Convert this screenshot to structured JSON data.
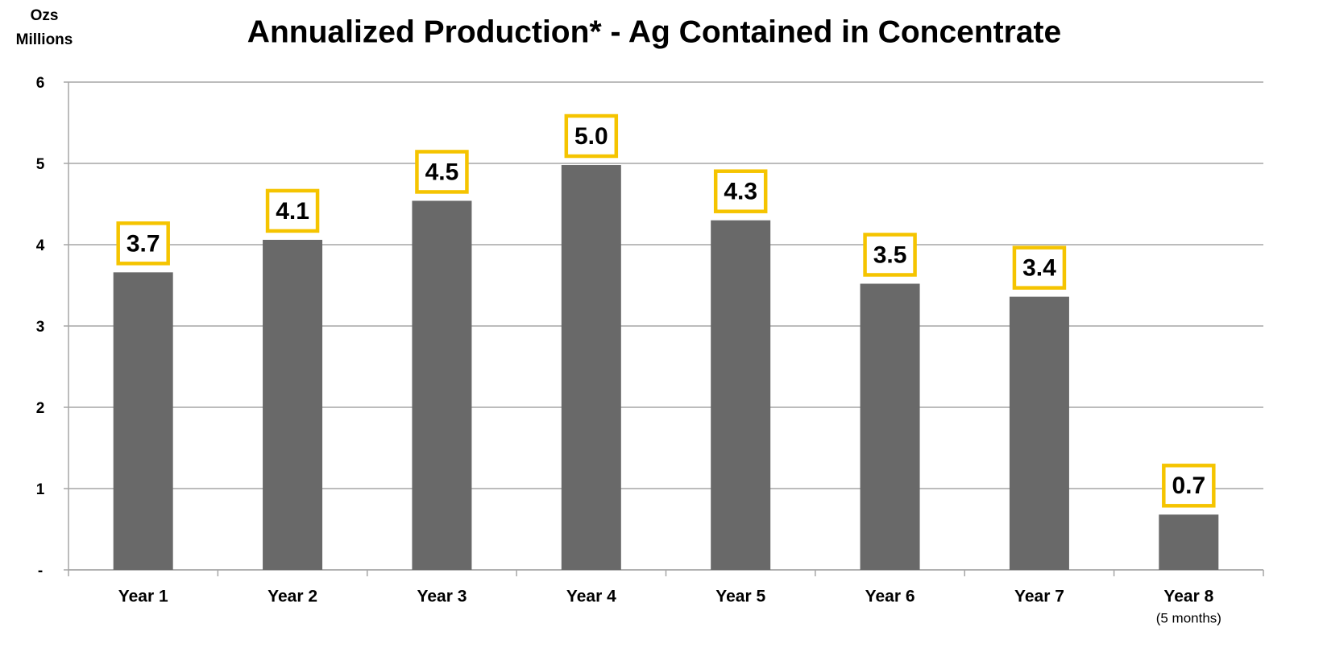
{
  "chart_data": {
    "type": "bar",
    "title": "Annualized Production* - Ag Contained in Concentrate",
    "ylabel": [
      "Ozs",
      "Millions"
    ],
    "categories": [
      "Year 1",
      "Year 2",
      "Year 3",
      "Year 4",
      "Year 5",
      "Year 6",
      "Year 7",
      "Year 8"
    ],
    "category_subtitles": [
      null,
      null,
      null,
      null,
      null,
      null,
      null,
      "(5 months)"
    ],
    "values": [
      3.66,
      4.06,
      4.54,
      4.98,
      4.3,
      3.52,
      3.36,
      0.68
    ],
    "value_labels": [
      "3.7",
      "4.1",
      "4.5",
      "5.0",
      "4.3",
      "3.5",
      "3.4",
      "0.7"
    ],
    "color": "#696969",
    "label_box_color": "#f5c400",
    "ylim": [
      0,
      6
    ],
    "yticks": [
      {
        "value": 0,
        "label": "-"
      },
      1,
      2,
      3,
      4,
      5,
      6
    ],
    "grid": true
  }
}
